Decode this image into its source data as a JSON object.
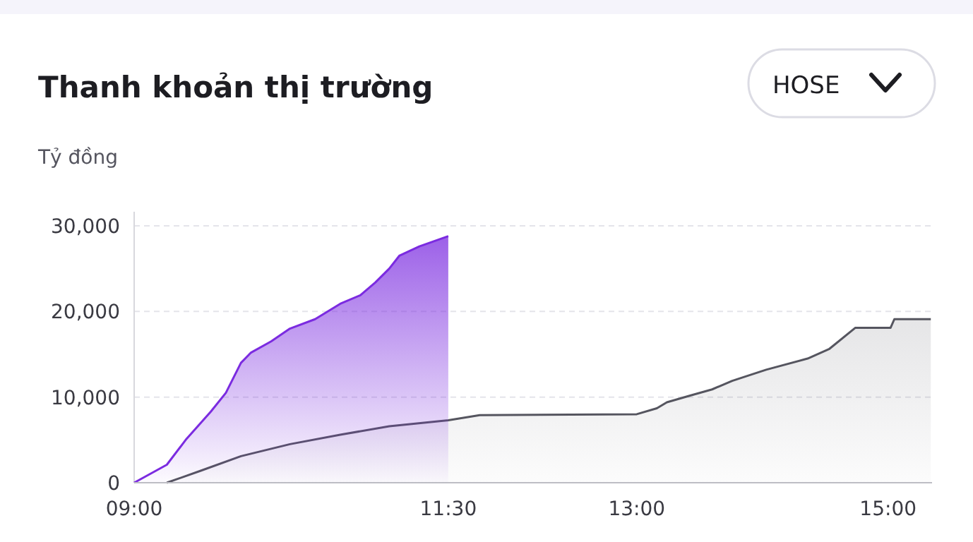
{
  "chart_data": {
    "type": "area",
    "title": "Thanh khoản thị trường",
    "ylabel": "Tỷ đồng",
    "annotations": [
      "HOSE"
    ],
    "xlim": [
      9,
      15.35
    ],
    "xticks": [
      {
        "value": 9,
        "label": "09:00"
      },
      {
        "value": 11.5,
        "label": "11:30"
      },
      {
        "value": 13,
        "label": "13:00"
      },
      {
        "value": 15,
        "label": "15:00"
      }
    ],
    "ylim": [
      0,
      30000
    ],
    "yticks": [
      {
        "value": 0,
        "label": "0"
      },
      {
        "value": 10000,
        "label": "10,000"
      },
      {
        "value": 20000,
        "label": "20,000"
      },
      {
        "value": 30000,
        "label": "30,000"
      }
    ],
    "grid": "y",
    "series": [
      {
        "color": "#55555f",
        "x": [
          9.26,
          9.53,
          9.85,
          10.24,
          10.64,
          11.03,
          11.5,
          11.75,
          13,
          13.16,
          13.24,
          13.43,
          13.6,
          13.76,
          14.03,
          14.36,
          14.53,
          14.74,
          15.02,
          15.05,
          15.34
        ],
        "values": [
          0,
          1400,
          3100,
          4500,
          5600,
          6600,
          7300,
          7900,
          8000,
          8700,
          9400,
          10200,
          10900,
          11900,
          13200,
          14500,
          15600,
          18100,
          18100,
          19100,
          19100
        ]
      },
      {
        "color": "#7b2be0",
        "x": [
          9,
          9.26,
          9.41,
          9.61,
          9.73,
          9.85,
          9.93,
          10.09,
          10.24,
          10.44,
          10.64,
          10.8,
          10.92,
          11.03,
          11.11,
          11.27,
          11.5
        ],
        "values": [
          0,
          2100,
          5000,
          8300,
          10500,
          14000,
          15200,
          16500,
          18000,
          19100,
          20900,
          21900,
          23400,
          25000,
          26500,
          27600,
          28800
        ]
      }
    ]
  }
}
